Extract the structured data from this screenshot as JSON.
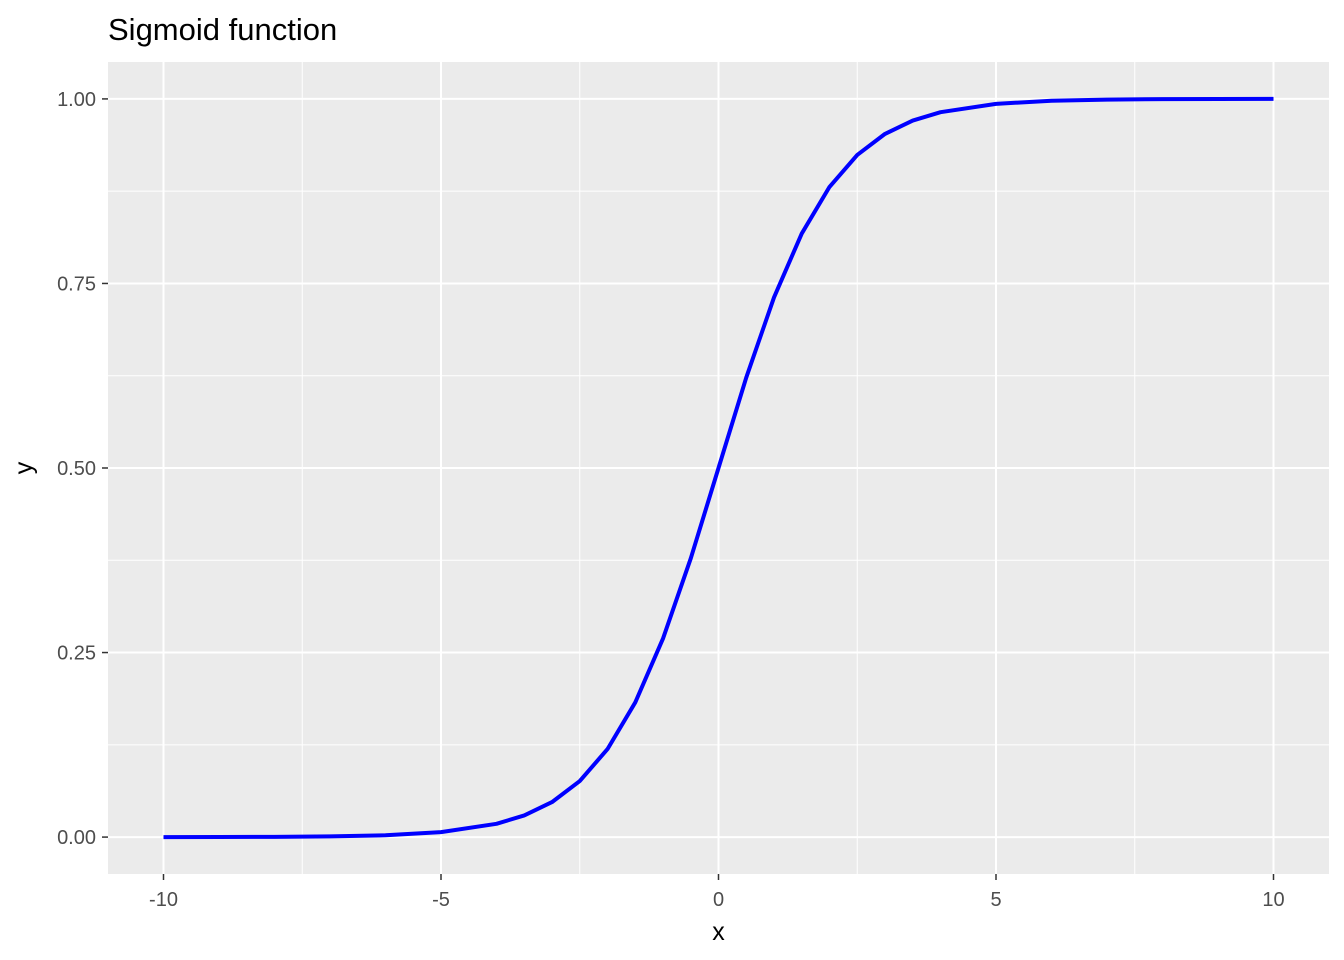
{
  "chart_data": {
    "type": "line",
    "title": "Sigmoid function",
    "xlabel": "x",
    "ylabel": "y",
    "xlim": [
      -11,
      11
    ],
    "ylim": [
      -0.05,
      1.05
    ],
    "grid": true,
    "legend": "none",
    "x_ticks": [
      -10,
      -5,
      0,
      5,
      10
    ],
    "x_tick_labels": [
      "-10",
      "-5",
      "0",
      "5",
      "10"
    ],
    "y_ticks": [
      0,
      0.25,
      0.5,
      0.75,
      1
    ],
    "y_tick_labels": [
      "0.00",
      "0.25",
      "0.50",
      "0.75",
      "1.00"
    ],
    "colors": {
      "panel": "#ebebeb",
      "grid": "#ffffff",
      "line": "#0000ff",
      "tick": "#333333"
    },
    "series": [
      {
        "x": [
          -10,
          -9,
          -8,
          -7,
          -6,
          -5,
          -4,
          -3.5,
          -3,
          -2.5,
          -2,
          -1.5,
          -1,
          -0.5,
          0,
          0.5,
          1,
          1.5,
          2,
          2.5,
          3,
          3.5,
          4,
          5,
          6,
          7,
          8,
          9,
          10
        ],
        "y": [
          0.0,
          0.0001,
          0.0003,
          0.0009,
          0.0025,
          0.0067,
          0.018,
          0.0293,
          0.0474,
          0.0759,
          0.1192,
          0.1824,
          0.2689,
          0.3775,
          0.5,
          0.6225,
          0.7311,
          0.8176,
          0.8808,
          0.9241,
          0.9526,
          0.9707,
          0.982,
          0.9933,
          0.9975,
          0.9991,
          0.9997,
          0.9999,
          1.0
        ]
      }
    ]
  }
}
